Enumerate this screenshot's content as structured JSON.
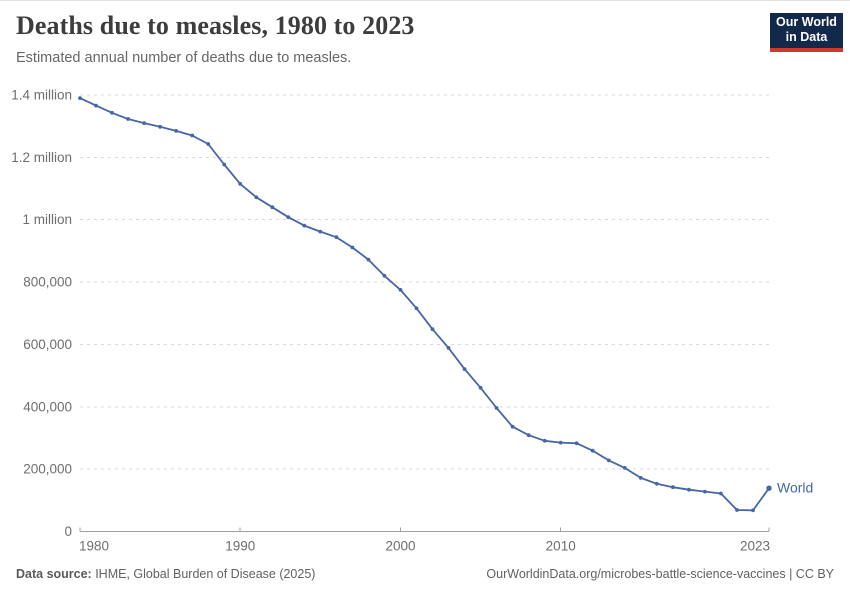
{
  "header": {
    "title": "Deaths due to measles, 1980 to 2023",
    "subtitle": "Estimated annual number of deaths due to measles.",
    "logo": {
      "line1": "Our World",
      "line2": "in Data"
    }
  },
  "chart_data": {
    "type": "line",
    "title": "Deaths due to measles, 1980 to 2023",
    "subtitle": "Estimated annual number of deaths due to measles.",
    "xlabel": "",
    "ylabel": "",
    "xlim": [
      1980,
      2023
    ],
    "ylim": [
      0,
      1400000
    ],
    "grid": "horizontal-dashed",
    "legend_position": "end-of-line-label",
    "x": [
      1980,
      1981,
      1982,
      1983,
      1984,
      1985,
      1986,
      1987,
      1988,
      1989,
      1990,
      1991,
      1992,
      1993,
      1994,
      1995,
      1996,
      1997,
      1998,
      1999,
      2000,
      2001,
      2002,
      2003,
      2004,
      2005,
      2006,
      2007,
      2008,
      2009,
      2010,
      2011,
      2012,
      2013,
      2014,
      2015,
      2016,
      2017,
      2018,
      2019,
      2020,
      2021,
      2022,
      2023
    ],
    "series": [
      {
        "name": "World",
        "color": "#4666a5",
        "values": [
          1390000,
          1366000,
          1343000,
          1323000,
          1310000,
          1298000,
          1285000,
          1270000,
          1243000,
          1177000,
          1115000,
          1072000,
          1040000,
          1008000,
          981000,
          962000,
          944000,
          911000,
          872000,
          820000,
          775000,
          716000,
          649000,
          589000,
          521000,
          461000,
          396000,
          336000,
          309000,
          291000,
          285000,
          283000,
          259000,
          228000,
          204000,
          172000,
          153000,
          142000,
          134000,
          128000,
          122000,
          69000,
          68000,
          139000
        ]
      }
    ],
    "x_ticks": [
      {
        "year": 1980,
        "label": "1980",
        "anchor": "start"
      },
      {
        "year": 1990,
        "label": "1990",
        "anchor": "middle"
      },
      {
        "year": 2000,
        "label": "2000",
        "anchor": "middle"
      },
      {
        "year": 2010,
        "label": "2010",
        "anchor": "middle"
      },
      {
        "year": 2023,
        "label": "2023",
        "anchor": "end"
      }
    ],
    "y_ticks": [
      {
        "v": 0,
        "label": "0"
      },
      {
        "v": 200000,
        "label": "200,000"
      },
      {
        "v": 400000,
        "label": "400,000"
      },
      {
        "v": 600000,
        "label": "600,000"
      },
      {
        "v": 800000,
        "label": "800,000"
      },
      {
        "v": 1000000,
        "label": "1 million"
      },
      {
        "v": 1200000,
        "label": "1.2 million"
      },
      {
        "v": 1400000,
        "label": "1.4 million"
      }
    ],
    "end_label": "World"
  },
  "colors": {
    "line": "#4666a5",
    "gridline": "#d9d9d9",
    "axis": "#a1a1a1",
    "tick_text": "#6e6e6e",
    "title": "#3d3d3d",
    "subtitle": "#666666",
    "logo_bg": "#12294b",
    "logo_accent": "#d0382e"
  },
  "footer": {
    "source_label": "Data source:",
    "source_text": " IHME, Global Burden of Disease (2025)",
    "credit": "OurWorldinData.org/microbes-battle-science-vaccines | CC BY"
  }
}
